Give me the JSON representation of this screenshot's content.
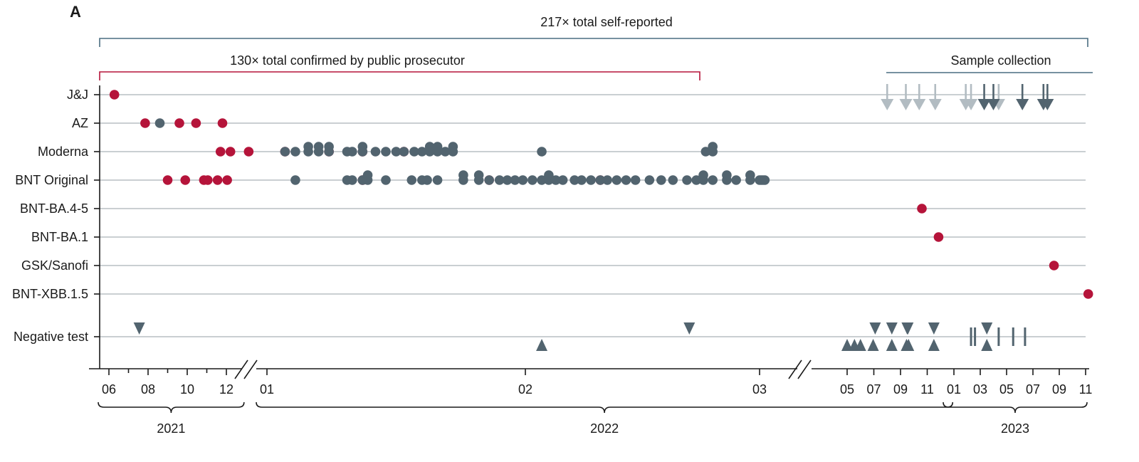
{
  "panel_label": "A",
  "colors": {
    "red": "#b5143a",
    "slate": "#52646f",
    "light_slate": "#b2bcc2",
    "grid": "#b9bfc4",
    "bracket_blue": "#4a6d80",
    "bracket_red": "#b5143a"
  },
  "brackets": {
    "self_reported": "217× total self-reported",
    "prosecutor": "130× total confirmed by public prosecutor",
    "sample_collection": "Sample collection"
  },
  "years": [
    "2021",
    "2022",
    "2023"
  ],
  "chart_data": {
    "type": "scatter",
    "rows": [
      "J&J",
      "AZ",
      "Moderna",
      "BNT Original",
      "BNT-BA.4-5",
      "BNT-BA.1",
      "GSK/Sanofi",
      "BNT-XBB.1.5",
      "Negative test"
    ],
    "x_ticks": [
      {
        "label": "06",
        "x": 0.0
      },
      {
        "label": "08",
        "x": 2.0
      },
      {
        "label": "10",
        "x": 4.0
      },
      {
        "label": "12",
        "x": 6.0
      },
      {
        "label": "01",
        "x": 7.0
      },
      {
        "label": "02",
        "x": 8.0
      },
      {
        "label": "03",
        "x": 9.0
      },
      {
        "label": "05",
        "x": 11.0
      },
      {
        "label": "07",
        "x": 13.0
      },
      {
        "label": "09",
        "x": 15.0
      },
      {
        "label": "11",
        "x": 17.0
      },
      {
        "label": "01",
        "x": 19.0
      },
      {
        "label": "03",
        "x": 21.0
      },
      {
        "label": "05",
        "x": 23.0
      },
      {
        "label": "07",
        "x": 25.0
      },
      {
        "label": "09",
        "x": 27.0
      },
      {
        "label": "11",
        "x": 29.0
      }
    ],
    "vaccinations": [
      {
        "row": "J&J",
        "color": "red",
        "x": [
          0.28
        ]
      },
      {
        "row": "AZ",
        "color": "red",
        "x": [
          1.85,
          3.6,
          4.45,
          5.8
        ]
      },
      {
        "row": "AZ",
        "color": "slate",
        "x": [
          2.6
        ]
      },
      {
        "row": "Moderna",
        "color": "red",
        "x": [
          5.7,
          6.1,
          6.55,
          7.07,
          7.24,
          7.37,
          7.53
        ]
      },
      {
        "row": "Moderna",
        "color": "slate",
        "x": [
          7.07,
          7.11,
          7.16,
          7.16,
          7.2,
          7.2,
          7.24,
          7.24,
          7.31,
          7.33,
          7.37,
          7.37,
          7.42,
          7.46,
          7.5,
          7.53,
          7.57,
          7.6,
          7.63,
          7.63,
          7.66,
          7.66,
          7.69,
          7.72,
          7.72,
          8.07,
          8.77,
          8.8,
          8.8
        ]
      },
      {
        "row": "BNT Original",
        "color": "red",
        "x": [
          3.0,
          3.9,
          4.85,
          5.05,
          5.55,
          6.02,
          7.37,
          7.86,
          8.32
        ]
      },
      {
        "row": "BNT Original",
        "color": "slate",
        "x": [
          7.11,
          7.31,
          7.33,
          7.37,
          7.39,
          7.39,
          7.46,
          7.56,
          7.6,
          7.62,
          7.66,
          7.76,
          7.76,
          7.82,
          7.82,
          7.86,
          7.9,
          7.93,
          7.96,
          7.99,
          8.03,
          8.07,
          8.1,
          8.1,
          8.13,
          8.16,
          8.21,
          8.24,
          8.28,
          8.32,
          8.35,
          8.39,
          8.43,
          8.47,
          8.53,
          8.58,
          8.63,
          8.69,
          8.73,
          8.76,
          8.76,
          8.8,
          8.86,
          8.86,
          8.9,
          8.96,
          8.96,
          9.0,
          9.04,
          9.08,
          9.12
        ]
      },
      {
        "row": "BNT-BA.4-5",
        "color": "red",
        "x": [
          16.6
        ]
      },
      {
        "row": "BNT-BA.1",
        "color": "red",
        "x": [
          17.85
        ]
      },
      {
        "row": "GSK/Sanofi",
        "color": "red",
        "x": [
          26.6
        ]
      },
      {
        "row": "BNT-XBB.1.5",
        "color": "red",
        "x": [
          29.2
        ]
      }
    ],
    "sample_collection_arrows": [
      {
        "color": "light_slate",
        "x": [
          14.0,
          15.4,
          16.4,
          17.6,
          19.9,
          20.3,
          22.4
        ]
      },
      {
        "color": "slate",
        "x": [
          21.3,
          22.0,
          24.2,
          25.8,
          26.1
        ]
      }
    ],
    "negative_tests": {
      "down": [
        1.55,
        8.7,
        13.1,
        14.35,
        15.5,
        15.55,
        17.5,
        21.5
      ],
      "up": [
        8.07,
        11.0,
        11.55,
        12.0,
        12.95,
        14.35,
        15.45,
        15.6,
        17.5,
        21.5
      ],
      "bar": [
        20.3,
        20.6,
        22.4,
        23.5,
        24.4
      ]
    },
    "year_spans": [
      {
        "label": "2021",
        "from": 0.0,
        "to": 6.4
      },
      {
        "label": "2022",
        "from": 7.0,
        "to": 18.8
      },
      {
        "label": "2023",
        "from": 19.0,
        "to": 29.0
      }
    ]
  }
}
